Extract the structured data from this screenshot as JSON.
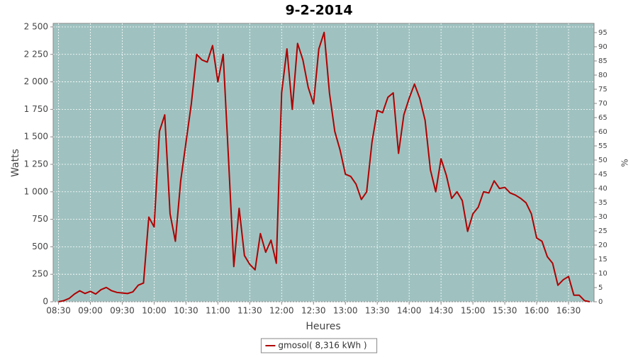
{
  "chart_data": {
    "type": "line",
    "title": "9-2-2014",
    "xlabel": "Heures",
    "ylabel": "Watts",
    "y2label": "%",
    "x": [
      "08:30",
      "08:35",
      "08:40",
      "08:45",
      "08:50",
      "08:55",
      "09:00",
      "09:05",
      "09:10",
      "09:15",
      "09:20",
      "09:25",
      "09:30",
      "09:35",
      "09:40",
      "09:45",
      "09:50",
      "09:55",
      "10:00",
      "10:05",
      "10:10",
      "10:15",
      "10:20",
      "10:25",
      "10:30",
      "10:35",
      "10:40",
      "10:45",
      "10:50",
      "10:55",
      "11:00",
      "11:05",
      "11:10",
      "11:15",
      "11:20",
      "11:25",
      "11:30",
      "11:35",
      "11:40",
      "11:45",
      "11:50",
      "11:55",
      "12:00",
      "12:05",
      "12:10",
      "12:15",
      "12:20",
      "12:25",
      "12:30",
      "12:35",
      "12:40",
      "12:45",
      "12:50",
      "12:55",
      "13:00",
      "13:05",
      "13:10",
      "13:15",
      "13:20",
      "13:25",
      "13:30",
      "13:35",
      "13:40",
      "13:45",
      "13:50",
      "13:55",
      "14:00",
      "14:05",
      "14:10",
      "14:15",
      "14:20",
      "14:25",
      "14:30",
      "14:35",
      "14:40",
      "14:45",
      "14:50",
      "14:55",
      "15:00",
      "15:05",
      "15:10",
      "15:15",
      "15:20",
      "15:25",
      "15:30",
      "15:35",
      "15:40",
      "15:45",
      "15:50",
      "15:55",
      "16:00",
      "16:05",
      "16:10",
      "16:15",
      "16:20",
      "16:25",
      "16:30",
      "16:35",
      "16:40",
      "16:45",
      "16:50"
    ],
    "series": [
      {
        "name": "gmosol( 8,316 kWh )",
        "color": "#b00000",
        "values": [
          0,
          10,
          30,
          70,
          100,
          75,
          95,
          70,
          110,
          130,
          100,
          85,
          80,
          75,
          90,
          150,
          170,
          770,
          680,
          1550,
          1700,
          800,
          550,
          1100,
          1450,
          1800,
          2250,
          2200,
          2180,
          2330,
          2000,
          2250,
          1300,
          320,
          850,
          420,
          340,
          290,
          620,
          450,
          560,
          350,
          1900,
          2300,
          1750,
          2350,
          2200,
          1950,
          1800,
          2300,
          2450,
          1900,
          1550,
          1380,
          1160,
          1140,
          1070,
          930,
          1000,
          1450,
          1740,
          1720,
          1860,
          1900,
          1350,
          1700,
          1850,
          1980,
          1850,
          1650,
          1200,
          1000,
          1300,
          1150,
          940,
          1000,
          920,
          640,
          800,
          860,
          1000,
          990,
          1100,
          1030,
          1040,
          990,
          970,
          940,
          900,
          800,
          580,
          550,
          410,
          350,
          150,
          200,
          230,
          60,
          60,
          10,
          0
        ]
      }
    ],
    "xlim": [
      "08:25",
      "16:54"
    ],
    "xticks": [
      "08:30",
      "09:00",
      "09:30",
      "10:00",
      "10:30",
      "11:00",
      "11:30",
      "12:00",
      "12:30",
      "13:00",
      "13:30",
      "14:00",
      "14:30",
      "15:00",
      "15:30",
      "16:00",
      "16:30"
    ],
    "ylim": [
      0,
      2532
    ],
    "yticks": [
      0,
      250,
      500,
      750,
      {
        "value": 1000,
        "label": "1 000"
      },
      {
        "value": 1250,
        "label": "1 250"
      },
      {
        "value": 1500,
        "label": "1 500"
      },
      {
        "value": 1750,
        "label": "1 750"
      },
      {
        "value": 2000,
        "label": "2 000"
      },
      {
        "value": 2250,
        "label": "2 250"
      },
      {
        "value": 2500,
        "label": "2 500"
      }
    ],
    "y2lim": [
      0,
      98.25
    ],
    "y2ticks": [
      0,
      5,
      10,
      15,
      20,
      25,
      30,
      35,
      40,
      45,
      50,
      55,
      60,
      65,
      70,
      75,
      80,
      85,
      90,
      95
    ],
    "grid": true,
    "background": "#9fc2c0",
    "legend": "bottom"
  }
}
